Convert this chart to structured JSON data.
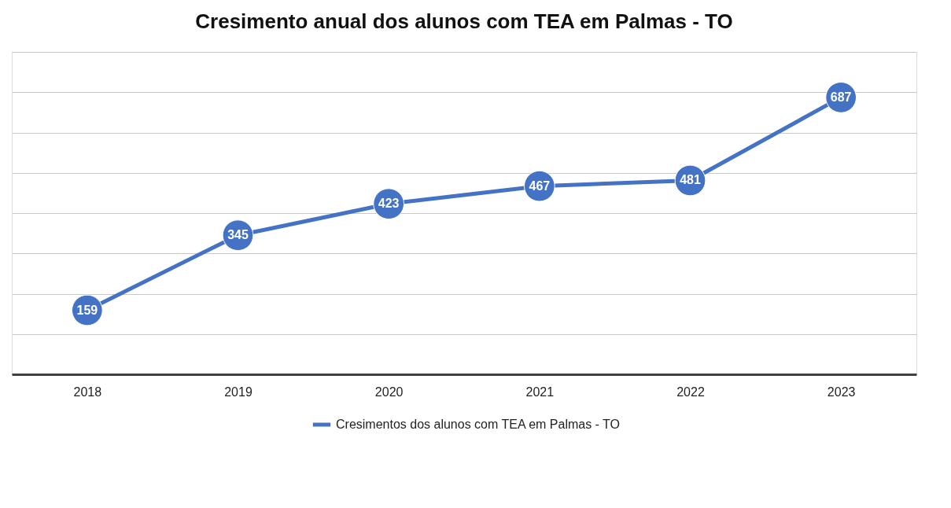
{
  "chart_data": {
    "type": "line",
    "title": "Cresimento anual dos alunos com TEA em Palmas - TO",
    "categories": [
      "2018",
      "2019",
      "2020",
      "2021",
      "2022",
      "2023"
    ],
    "series": [
      {
        "name": "Cresimentos dos alunos com TEA em Palmas - TO",
        "color": "#4472c4",
        "values": [
          159,
          345,
          423,
          467,
          481,
          687
        ]
      }
    ],
    "ylim": [
      0,
      800
    ],
    "yticks": [
      {
        "value": 0,
        "label": null
      },
      {
        "value": 100,
        "label": null
      },
      {
        "value": 200,
        "label": null
      },
      {
        "value": 300,
        "label": null
      },
      {
        "value": 400,
        "label": null
      },
      {
        "value": 500,
        "label": null
      },
      {
        "value": 600,
        "label": null
      },
      {
        "value": 700,
        "label": null
      },
      {
        "value": 800,
        "label": null
      }
    ],
    "tick_labels": "x",
    "grid": "y",
    "legend": "bottom",
    "marker": "circle",
    "line_style": "solid",
    "data_labels": true
  }
}
